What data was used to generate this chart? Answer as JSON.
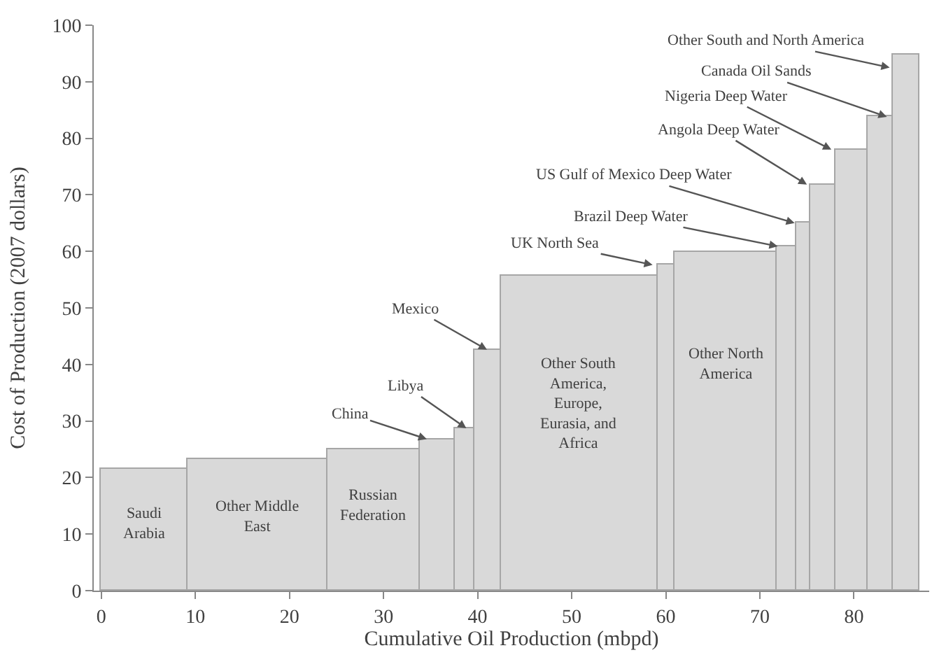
{
  "chart_data": {
    "type": "histogram",
    "xlabel": "Cumulative Oil Production (mbpd)",
    "ylabel": "Cost of Production (2007 dollars)",
    "bins": [
      0,
      9.1,
      24.0,
      33.9,
      37.6,
      39.6,
      42.5,
      59.1,
      61.0,
      71.8,
      73.8,
      75.3,
      78.1,
      81.4,
      84.2,
      87.0
    ],
    "values": [
      21.5,
      23.2,
      25.0,
      26.8,
      28.7,
      42.6,
      55.6,
      57.6,
      60.0,
      60.9,
      65.0,
      71.8,
      78.0,
      83.8,
      94.9
    ],
    "color": "#d9d9d9",
    "xlim": [
      -0.8,
      88
    ],
    "ylim": [
      0,
      100
    ],
    "xticks": [
      0,
      10,
      20,
      30,
      40,
      50,
      60,
      70,
      80
    ],
    "yticks": [
      0,
      10,
      20,
      30,
      40,
      50,
      60,
      70,
      80,
      90,
      100
    ],
    "annotations": [
      "Saudi\nArabia",
      "Other Middle\nEast",
      "Russian\nFederation",
      "Other South\nAmerica,\nEurope,\nEurasia, and\nAfrica",
      "Other North\nAmerica",
      {
        "text": "China",
        "x": 34.6,
        "y": 26.8
      },
      {
        "text": "Libya",
        "x": 38.8,
        "y": 28.7
      },
      {
        "text": "Mexico",
        "x": 41.0,
        "y": 42.6
      },
      {
        "text": "UK North Sea",
        "x": 58.6,
        "y": 57.6
      },
      {
        "text": "Brazil Deep Water",
        "x": 71.9,
        "y": 60.9
      },
      {
        "text": "US Gulf of Mexico Deep Water",
        "x": 73.7,
        "y": 65.0
      },
      {
        "text": "Angola Deep Water",
        "x": 75.0,
        "y": 71.8
      },
      {
        "text": "Nigeria Deep Water",
        "x": 77.6,
        "y": 78.0
      },
      {
        "text": "Canada Oil Sands",
        "x": 83.5,
        "y": 83.8
      },
      {
        "text": "Other South and North America",
        "x": 83.8,
        "y": 92.5
      }
    ]
  }
}
